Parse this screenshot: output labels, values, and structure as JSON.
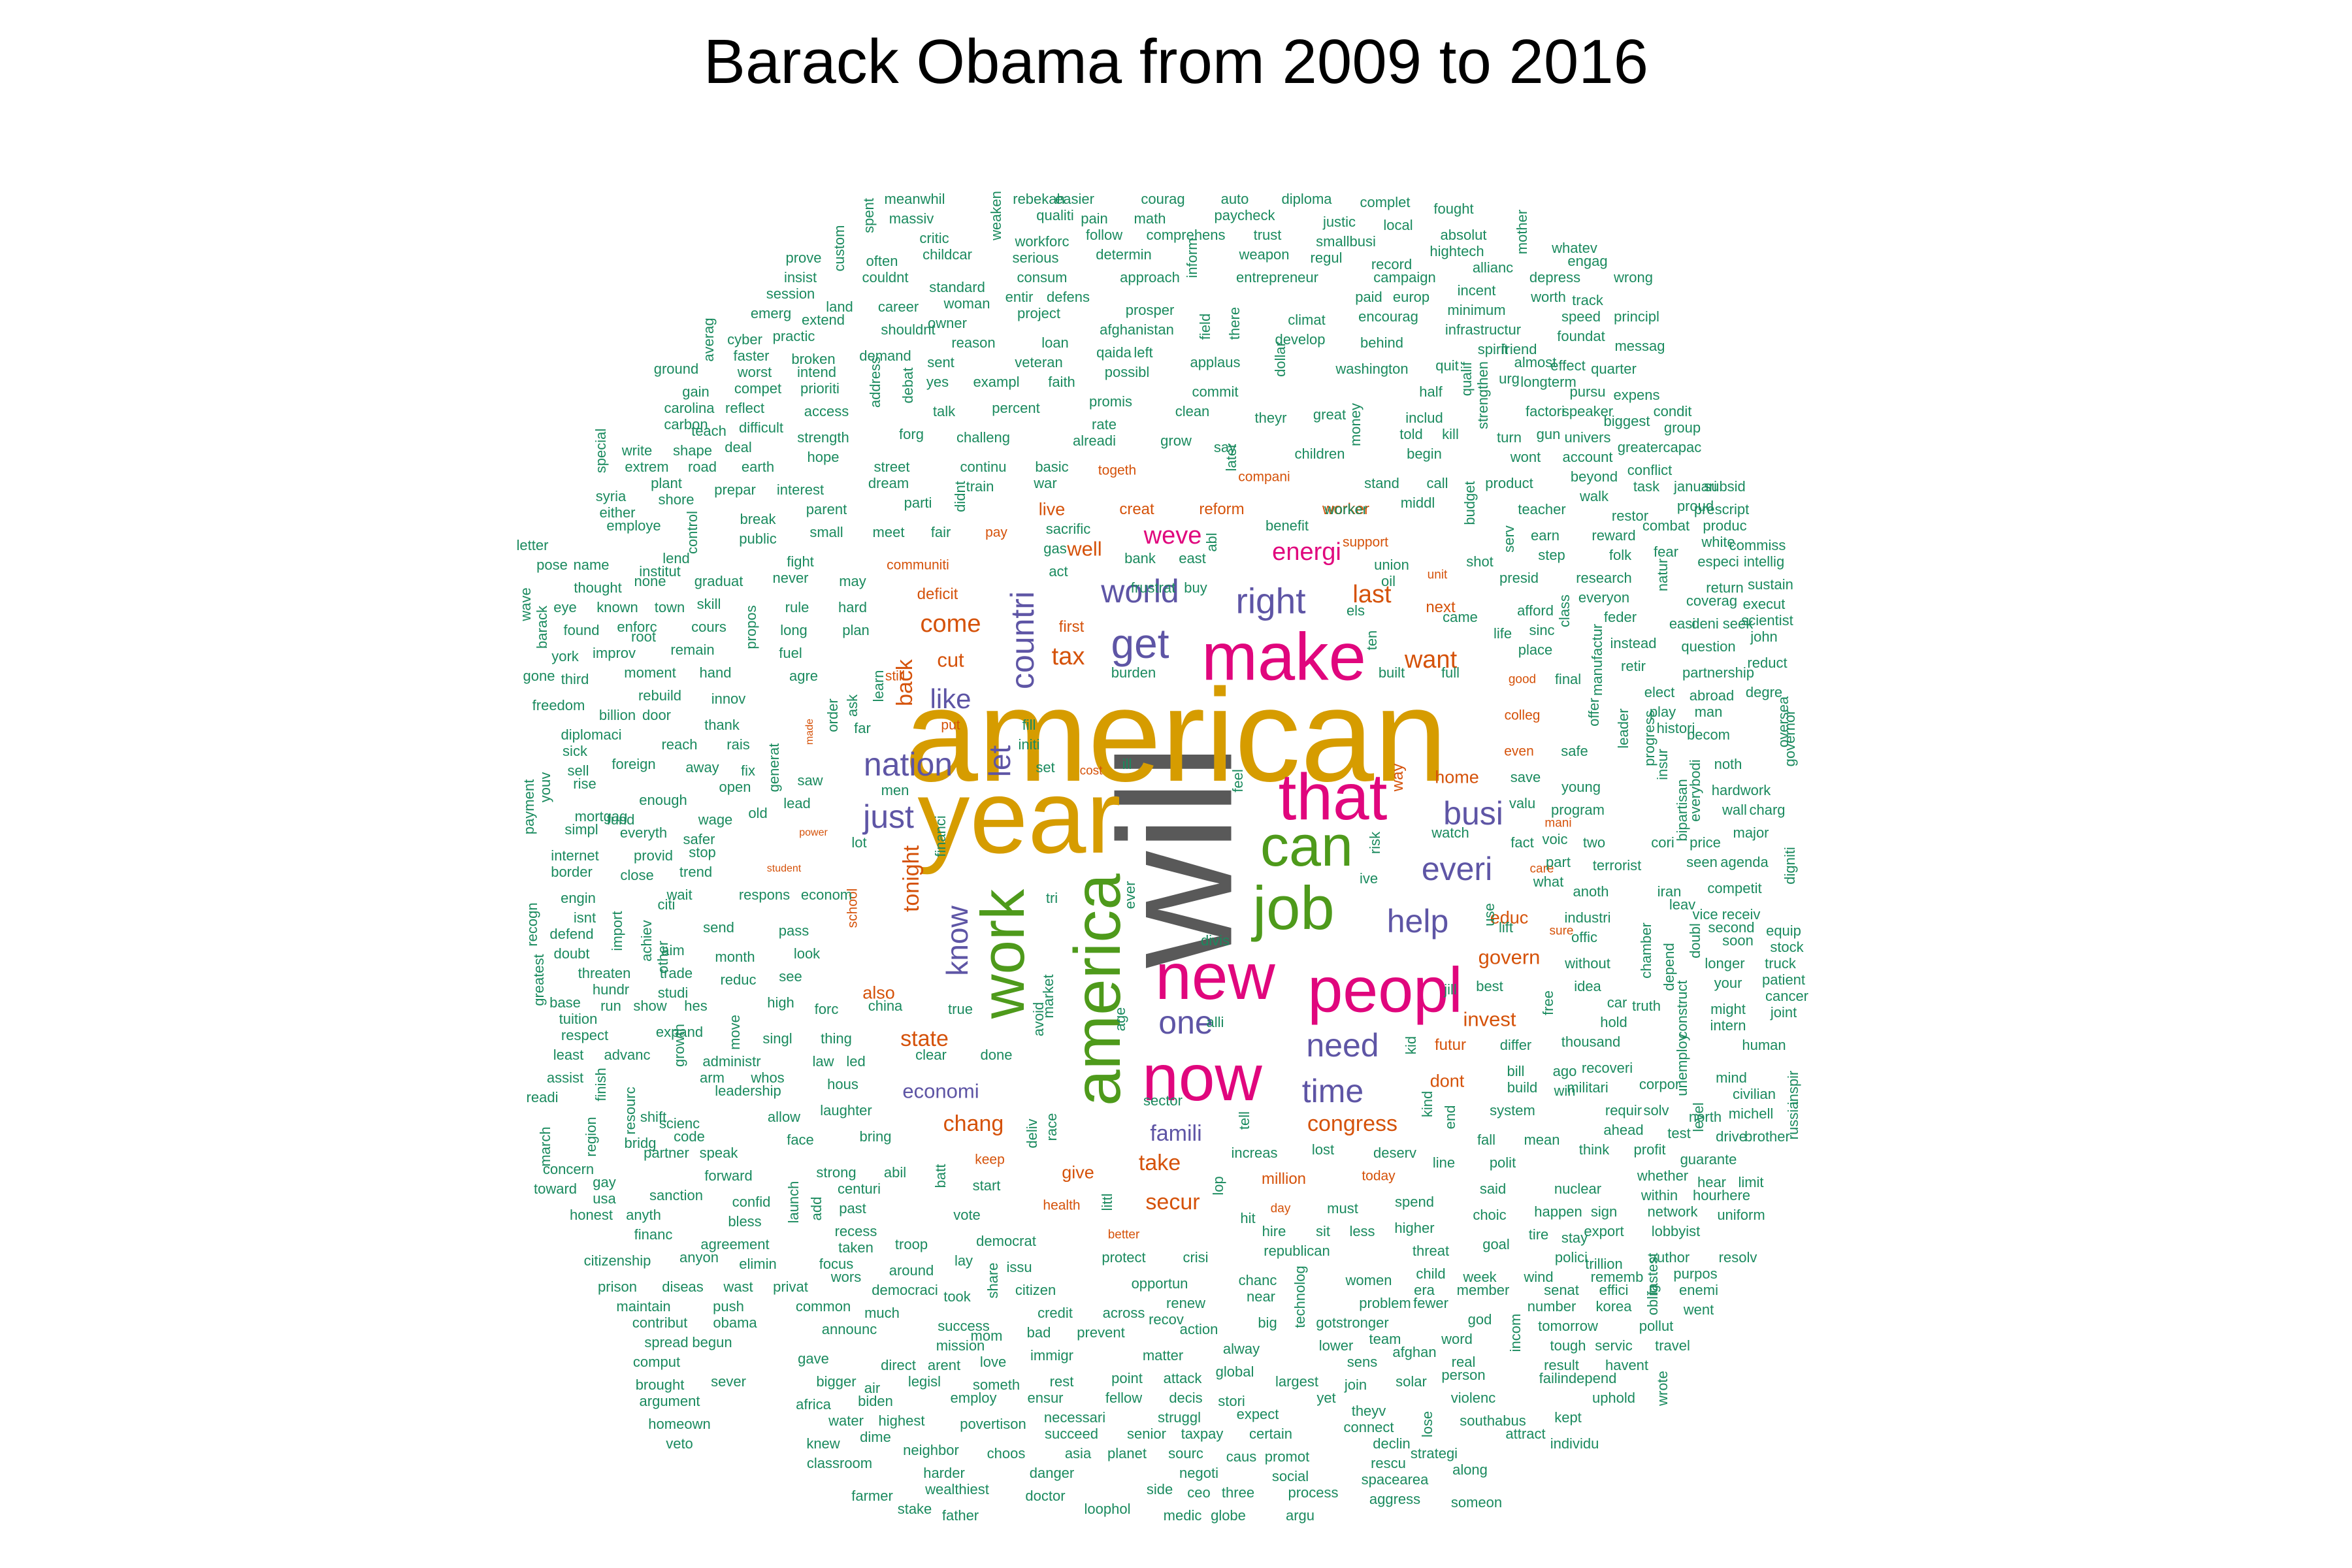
{
  "title": "Barack Obama from 2009 to 2016",
  "colors": {
    "big": "#595959",
    "gold": "#d69c00",
    "pink": "#e0067d",
    "purple": "#5e55a5",
    "green": "#4e9a1b",
    "orange": "#d5520a",
    "teal": "#1a8a5e"
  },
  "words": [
    {
      "t": "will",
      "c": "big",
      "s": 100
    },
    {
      "t": "american",
      "c": "gold",
      "s": 96
    },
    {
      "t": "year",
      "c": "gold",
      "s": 84
    },
    {
      "t": "make",
      "c": "pink",
      "s": 68
    },
    {
      "t": "that",
      "c": "pink",
      "s": 66
    },
    {
      "t": "new",
      "c": "pink",
      "s": 66
    },
    {
      "t": "now",
      "c": "pink",
      "s": 66
    },
    {
      "t": "peopl",
      "c": "pink",
      "s": 66
    },
    {
      "t": "america",
      "c": "green",
      "s": 66
    },
    {
      "t": "work",
      "c": "green",
      "s": 64
    },
    {
      "t": "job",
      "c": "green",
      "s": 64
    },
    {
      "t": "can",
      "c": "green",
      "s": 62
    },
    {
      "t": "get",
      "c": "purple",
      "s": 52
    },
    {
      "t": "right",
      "c": "purple",
      "s": 48
    },
    {
      "t": "world",
      "c": "purple",
      "s": 46
    },
    {
      "t": "countri",
      "c": "purple",
      "s": 46
    },
    {
      "t": "let",
      "c": "purple",
      "s": 44
    },
    {
      "t": "like",
      "c": "purple",
      "s": 42
    },
    {
      "t": "nation",
      "c": "purple",
      "s": 46
    },
    {
      "t": "just",
      "c": "purple",
      "s": 46
    },
    {
      "t": "know",
      "c": "purple",
      "s": 44
    },
    {
      "t": "busi",
      "c": "purple",
      "s": 46
    },
    {
      "t": "everi",
      "c": "purple",
      "s": 46
    },
    {
      "t": "help",
      "c": "purple",
      "s": 46
    },
    {
      "t": "need",
      "c": "purple",
      "s": 46
    },
    {
      "t": "time",
      "c": "purple",
      "s": 46
    },
    {
      "t": "one",
      "c": "purple",
      "s": 46
    },
    {
      "t": "economi",
      "c": "purple",
      "s": 36
    },
    {
      "t": "famili",
      "c": "purple",
      "s": 38
    },
    {
      "t": "energi",
      "c": "pink",
      "s": 40
    },
    {
      "t": "weve",
      "c": "pink",
      "s": 40
    },
    {
      "t": "last",
      "c": "orange",
      "s": 40
    },
    {
      "t": "want",
      "c": "orange",
      "s": 40
    },
    {
      "t": "tax",
      "c": "orange",
      "s": 40
    },
    {
      "t": "come",
      "c": "orange",
      "s": 40
    },
    {
      "t": "cut",
      "c": "orange",
      "s": 36
    },
    {
      "t": "back",
      "c": "orange",
      "s": 38
    },
    {
      "t": "tonight",
      "c": "orange",
      "s": 38
    },
    {
      "t": "state",
      "c": "orange",
      "s": 38
    },
    {
      "t": "also",
      "c": "orange",
      "s": 34
    },
    {
      "t": "school",
      "c": "orange",
      "s": 30
    },
    {
      "t": "chang",
      "c": "orange",
      "s": 38
    },
    {
      "t": "congress",
      "c": "orange",
      "s": 38
    },
    {
      "t": "take",
      "c": "orange",
      "s": 38
    },
    {
      "t": "secur",
      "c": "orange",
      "s": 38
    },
    {
      "t": "give",
      "c": "orange",
      "s": 34
    },
    {
      "t": "govern",
      "c": "orange",
      "s": 36
    },
    {
      "t": "invest",
      "c": "orange",
      "s": 36
    },
    {
      "t": "educ",
      "c": "orange",
      "s": 34
    },
    {
      "t": "futur",
      "c": "orange",
      "s": 32
    },
    {
      "t": "dont",
      "c": "orange",
      "s": 34
    },
    {
      "t": "home",
      "c": "orange",
      "s": 34
    },
    {
      "t": "well",
      "c": "orange",
      "s": 36
    },
    {
      "t": "live",
      "c": "orange",
      "s": 34
    },
    {
      "t": "first",
      "c": "orange",
      "s": 32
    },
    {
      "t": "deficit",
      "c": "orange",
      "s": 32
    },
    {
      "t": "communiti",
      "c": "orange",
      "s": 30
    },
    {
      "t": "pay",
      "c": "orange",
      "s": 30
    },
    {
      "t": "creat",
      "c": "orange",
      "s": 32
    },
    {
      "t": "reform",
      "c": "orange",
      "s": 32
    },
    {
      "t": "worker",
      "c": "orange",
      "s": 32
    },
    {
      "t": "togeth",
      "c": "orange",
      "s": 30
    },
    {
      "t": "compani",
      "c": "orange",
      "s": 30
    },
    {
      "t": "support",
      "c": "orange",
      "s": 30
    },
    {
      "t": "next",
      "c": "orange",
      "s": 32
    },
    {
      "t": "colleg",
      "c": "orange",
      "s": 30
    },
    {
      "t": "even",
      "c": "orange",
      "s": 30
    },
    {
      "t": "put",
      "c": "orange",
      "s": 30
    },
    {
      "t": "still",
      "c": "orange",
      "s": 30
    },
    {
      "t": "cost",
      "c": "orange",
      "s": 28
    },
    {
      "t": "way",
      "c": "orange",
      "s": 32
    },
    {
      "t": "million",
      "c": "orange",
      "s": 32
    },
    {
      "t": "today",
      "c": "orange",
      "s": 30
    },
    {
      "t": "health",
      "c": "orange",
      "s": 30
    },
    {
      "t": "keep",
      "c": "orange",
      "s": 30
    },
    {
      "t": "better",
      "c": "orange",
      "s": 28
    },
    {
      "t": "day",
      "c": "orange",
      "s": 28
    },
    {
      "t": "care",
      "c": "orange",
      "s": 28
    },
    {
      "t": "mani",
      "c": "orange",
      "s": 28
    },
    {
      "t": "sure",
      "c": "orange",
      "s": 28
    },
    {
      "t": "good",
      "c": "orange",
      "s": 28
    },
    {
      "t": "student",
      "c": "orange",
      "s": 26
    },
    {
      "t": "power",
      "c": "orange",
      "s": 26
    },
    {
      "t": "made",
      "c": "orange",
      "s": 26
    },
    {
      "t": "unit",
      "c": "orange",
      "s": 28
    }
  ]
}
